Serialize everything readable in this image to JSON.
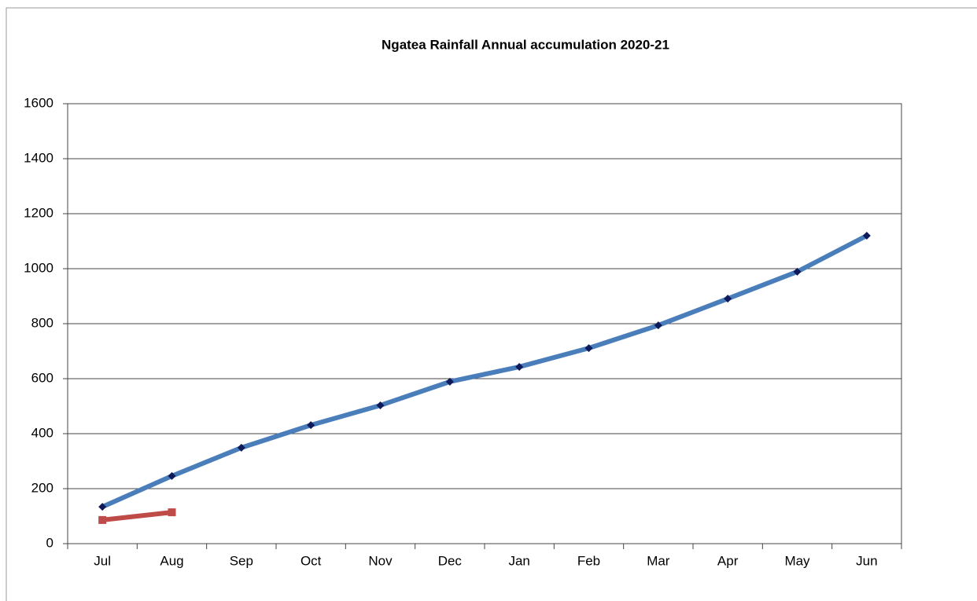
{
  "chart_data": {
    "type": "line",
    "title": "Ngatea Rainfall  Annual  accumulation  2020-21",
    "categories": [
      "Jul",
      "Aug",
      "Sep",
      "Oct",
      "Nov",
      "Dec",
      "Jan",
      "Feb",
      "Mar",
      "Apr",
      "May",
      "Jun"
    ],
    "series": [
      {
        "color": "#4a7ebb",
        "marker_color": "#0f1a5a",
        "marker": "diamond",
        "values": [
          134,
          246,
          349,
          431,
          503,
          589,
          643,
          711,
          794,
          891,
          989,
          1120
        ]
      },
      {
        "color": "#be4b48",
        "marker_color": "#be4b48",
        "marker": "square",
        "values": [
          86,
          114,
          null,
          null,
          null,
          null,
          null,
          null,
          null,
          null,
          null,
          null
        ]
      }
    ],
    "ylim": [
      0,
      1600
    ],
    "yticks": [
      0,
      200,
      400,
      600,
      800,
      1000,
      1200,
      1400,
      1600
    ],
    "grid": true
  }
}
